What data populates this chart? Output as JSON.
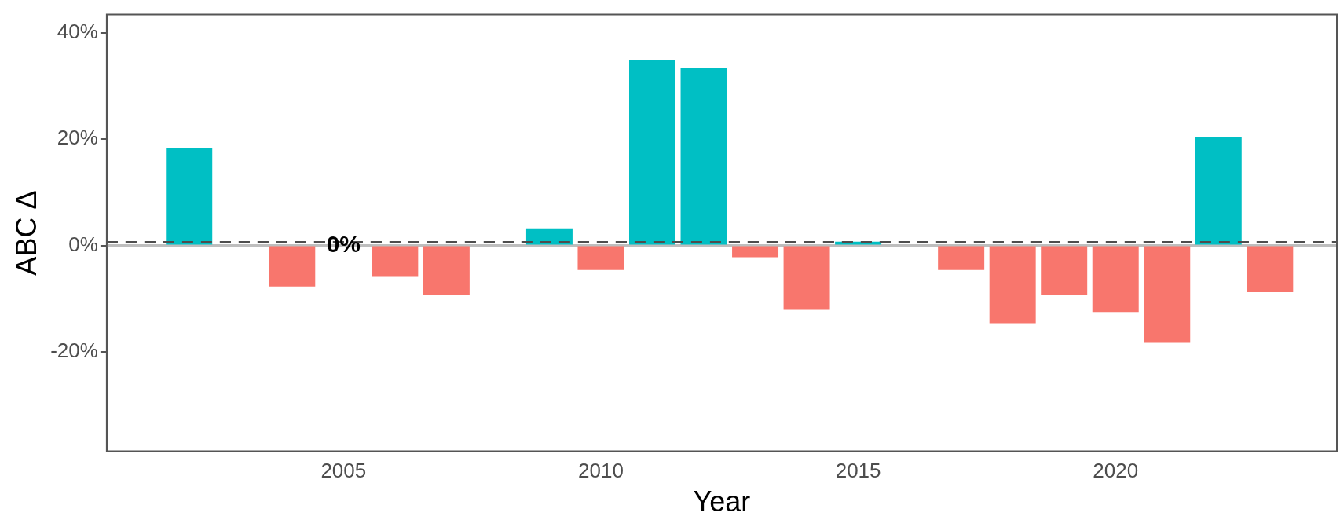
{
  "chart_data": {
    "type": "bar",
    "xlabel": "Year",
    "ylabel": "ABC Δ",
    "x": [
      2002,
      2004,
      2006,
      2007,
      2009,
      2010,
      2011,
      2012,
      2013,
      2014,
      2015,
      2017,
      2018,
      2019,
      2020,
      2021,
      2022,
      2023
    ],
    "values": [
      18.3,
      -7.7,
      -5.9,
      -9.3,
      3.2,
      -4.6,
      34.8,
      33.4,
      -2.2,
      -12.1,
      0.7,
      -4.6,
      -14.6,
      -9.3,
      -12.5,
      -18.3,
      20.4,
      -8.8
    ],
    "colors": [
      "#00bfc4",
      "#f8766d",
      "#f8766d",
      "#f8766d",
      "#00bfc4",
      "#f8766d",
      "#00bfc4",
      "#00bfc4",
      "#f8766d",
      "#f8766d",
      "#00bfc4",
      "#f8766d",
      "#f8766d",
      "#f8766d",
      "#f8766d",
      "#f8766d",
      "#00bfc4",
      "#f8766d"
    ],
    "xlim": [
      2000.4,
      2024.3
    ],
    "xticks": [
      2005,
      2010,
      2015,
      2020
    ],
    "ylim": [
      -38.7,
      43.4
    ],
    "yticks": [
      {
        "value": -20,
        "label": "-20%"
      },
      {
        "value": 0,
        "label": "0%"
      },
      {
        "value": 20,
        "label": "20%"
      },
      {
        "value": 40,
        "label": "40%"
      }
    ],
    "ref_lines": [
      {
        "axis": "y",
        "value": 0,
        "color": "#bebebe",
        "line_style": "solid"
      },
      {
        "axis": "y",
        "value": 0.6,
        "color": "#4d4d4d",
        "line_style": "dashed"
      }
    ],
    "annotations": [
      {
        "text": "0%",
        "x": 2005,
        "y": 0
      }
    ],
    "grid": false,
    "legend": false
  }
}
